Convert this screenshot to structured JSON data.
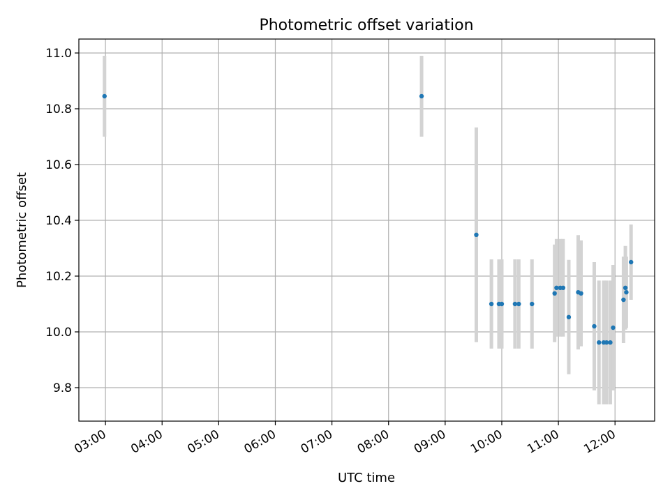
{
  "chart_data": {
    "type": "scatter",
    "title": "Photometric offset variation",
    "xlabel": "UTC time",
    "ylabel": "Photometric offset",
    "x_tick_labels": [
      "03:00",
      "04:00",
      "05:00",
      "06:00",
      "07:00",
      "08:00",
      "09:00",
      "10:00",
      "11:00",
      "12:00"
    ],
    "x_ticks_hours": [
      3,
      4,
      5,
      6,
      7,
      8,
      9,
      10,
      11,
      12
    ],
    "y_ticks": [
      9.8,
      10.0,
      10.2,
      10.4,
      10.6,
      10.8,
      11.0
    ],
    "xlim_hours": [
      2.53,
      12.7
    ],
    "ylim": [
      9.68,
      11.05
    ],
    "grid": true,
    "colors": {
      "marker": "#1f77b4",
      "errorbar": "#d3d3d3",
      "grid": "#b0b0b0"
    },
    "points": [
      {
        "t": "02:59",
        "y": 10.845,
        "err": 0.145
      },
      {
        "t": "08:35",
        "y": 10.845,
        "err": 0.145
      },
      {
        "t": "09:33",
        "y": 10.348,
        "err": 0.385
      },
      {
        "t": "09:49",
        "y": 10.1,
        "err": 0.16
      },
      {
        "t": "09:57",
        "y": 10.1,
        "err": 0.16
      },
      {
        "t": "10:00",
        "y": 10.1,
        "err": 0.16
      },
      {
        "t": "10:14",
        "y": 10.1,
        "err": 0.16
      },
      {
        "t": "10:18",
        "y": 10.1,
        "err": 0.16
      },
      {
        "t": "10:32",
        "y": 10.1,
        "err": 0.16
      },
      {
        "t": "10:56",
        "y": 10.138,
        "err": 0.175
      },
      {
        "t": "10:58",
        "y": 10.158,
        "err": 0.175
      },
      {
        "t": "11:02",
        "y": 10.158,
        "err": 0.175
      },
      {
        "t": "11:05",
        "y": 10.158,
        "err": 0.175
      },
      {
        "t": "11:11",
        "y": 10.053,
        "err": 0.205
      },
      {
        "t": "11:21",
        "y": 10.142,
        "err": 0.205
      },
      {
        "t": "11:24",
        "y": 10.138,
        "err": 0.19
      },
      {
        "t": "11:38",
        "y": 10.02,
        "err": 0.23
      },
      {
        "t": "11:43",
        "y": 9.962,
        "err": 0.222
      },
      {
        "t": "11:48",
        "y": 9.962,
        "err": 0.222
      },
      {
        "t": "11:51",
        "y": 9.962,
        "err": 0.222
      },
      {
        "t": "11:55",
        "y": 9.962,
        "err": 0.222
      },
      {
        "t": "11:58",
        "y": 10.015,
        "err": 0.225
      },
      {
        "t": "12:09",
        "y": 10.115,
        "err": 0.155
      },
      {
        "t": "12:11",
        "y": 10.158,
        "err": 0.15
      },
      {
        "t": "12:12",
        "y": 10.142,
        "err": 0.128
      },
      {
        "t": "12:17",
        "y": 10.25,
        "err": 0.135
      }
    ]
  }
}
